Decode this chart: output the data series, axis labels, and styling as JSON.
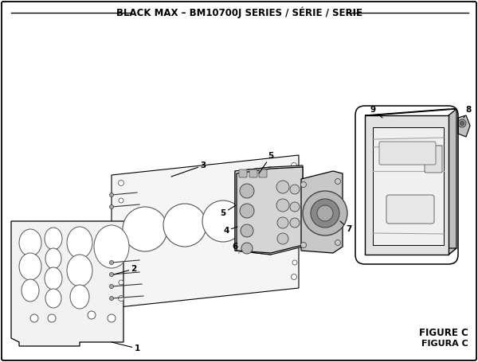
{
  "title": "BLACK MAX – BM10700J SERIES / SÉRIE / SERIE",
  "figure_label": "FIGURE C",
  "figura_label": "FIGURA C",
  "bg_color": "#ffffff",
  "title_fontsize": 8.5,
  "label_fontsize": 7.5,
  "fig_label_fontsize": 8.5
}
